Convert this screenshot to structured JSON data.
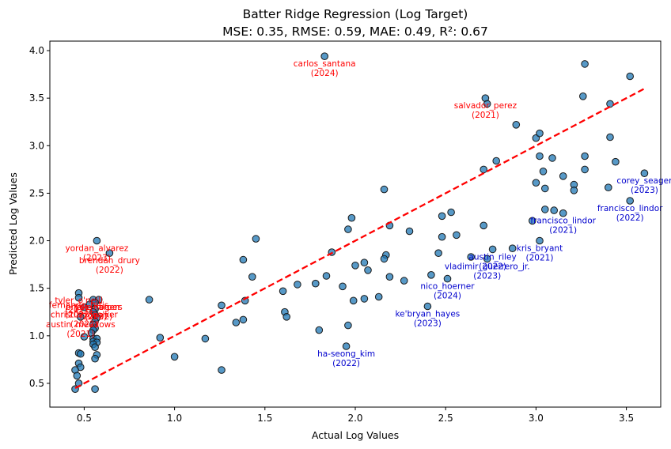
{
  "chart_data": {
    "type": "scatter",
    "title_line1": "Batter Ridge Regression (Log Target)",
    "title_line2": "MSE: 0.35, RMSE: 0.59, MAE: 0.49, R²: 0.67",
    "xlabel": "Actual Log Values",
    "ylabel": "Predicted Log Values",
    "xlim": [
      0.31,
      3.69
    ],
    "ylim": [
      0.25,
      4.1
    ],
    "xticks": [
      {
        "value": 0.5,
        "label": "0.5"
      },
      {
        "value": 1.0,
        "label": "1.0"
      },
      {
        "value": 1.5,
        "label": "1.5"
      },
      {
        "value": 2.0,
        "label": "2.0"
      },
      {
        "value": 2.5,
        "label": "2.5"
      },
      {
        "value": 3.0,
        "label": "3.0"
      },
      {
        "value": 3.5,
        "label": "3.5"
      }
    ],
    "yticks": [
      {
        "value": 0.5,
        "label": "0.5"
      },
      {
        "value": 1.0,
        "label": "1.0"
      },
      {
        "value": 1.5,
        "label": "1.5"
      },
      {
        "value": 2.0,
        "label": "2.0"
      },
      {
        "value": 2.5,
        "label": "2.5"
      },
      {
        "value": 3.0,
        "label": "3.0"
      },
      {
        "value": 3.5,
        "label": "3.5"
      },
      {
        "value": 4.0,
        "label": "4.0"
      }
    ],
    "point_color": "#1f77b4",
    "reference_line": {
      "from": [
        0.45,
        0.45
      ],
      "to": [
        3.6,
        3.6
      ],
      "color": "#ff0000",
      "style": "dashed"
    },
    "points": [
      [
        1.83,
        3.94
      ],
      [
        3.27,
        3.86
      ],
      [
        3.52,
        3.73
      ],
      [
        2.72,
        3.5
      ],
      [
        3.26,
        3.52
      ],
      [
        2.73,
        3.44
      ],
      [
        3.41,
        3.44
      ],
      [
        2.89,
        3.22
      ],
      [
        3.41,
        3.09
      ],
      [
        3.0,
        3.08
      ],
      [
        3.02,
        3.13
      ],
      [
        2.78,
        2.84
      ],
      [
        3.02,
        2.89
      ],
      [
        3.09,
        2.87
      ],
      [
        3.27,
        2.89
      ],
      [
        3.44,
        2.83
      ],
      [
        2.71,
        2.75
      ],
      [
        3.04,
        2.73
      ],
      [
        3.27,
        2.75
      ],
      [
        3.6,
        2.71
      ],
      [
        3.15,
        2.68
      ],
      [
        3.0,
        2.61
      ],
      [
        3.05,
        2.55
      ],
      [
        3.21,
        2.59
      ],
      [
        3.21,
        2.53
      ],
      [
        3.4,
        2.56
      ],
      [
        2.16,
        2.54
      ],
      [
        3.52,
        2.42
      ],
      [
        3.05,
        2.33
      ],
      [
        3.1,
        2.32
      ],
      [
        3.15,
        2.29
      ],
      [
        2.98,
        2.21
      ],
      [
        2.53,
        2.3
      ],
      [
        2.48,
        2.26
      ],
      [
        1.98,
        2.24
      ],
      [
        2.71,
        2.16
      ],
      [
        2.19,
        2.16
      ],
      [
        1.96,
        2.12
      ],
      [
        2.3,
        2.1
      ],
      [
        2.56,
        2.06
      ],
      [
        2.48,
        2.04
      ],
      [
        1.45,
        2.02
      ],
      [
        0.57,
        2.0
      ],
      [
        3.02,
        2.0
      ],
      [
        2.87,
        1.92
      ],
      [
        2.76,
        1.91
      ],
      [
        1.87,
        1.88
      ],
      [
        0.64,
        1.87
      ],
      [
        2.46,
        1.87
      ],
      [
        2.17,
        1.85
      ],
      [
        2.64,
        1.83
      ],
      [
        2.73,
        1.81
      ],
      [
        1.38,
        1.8
      ],
      [
        2.16,
        1.81
      ],
      [
        2.05,
        1.77
      ],
      [
        2.0,
        1.74
      ],
      [
        2.07,
        1.69
      ],
      [
        2.42,
        1.64
      ],
      [
        1.43,
        1.62
      ],
      [
        2.19,
        1.62
      ],
      [
        1.84,
        1.63
      ],
      [
        2.27,
        1.58
      ],
      [
        2.51,
        1.6
      ],
      [
        1.68,
        1.54
      ],
      [
        1.78,
        1.55
      ],
      [
        1.93,
        1.52
      ],
      [
        0.47,
        1.45
      ],
      [
        1.6,
        1.47
      ],
      [
        0.47,
        1.4
      ],
      [
        0.55,
        1.38
      ],
      [
        0.58,
        1.38
      ],
      [
        0.86,
        1.38
      ],
      [
        1.39,
        1.37
      ],
      [
        1.99,
        1.37
      ],
      [
        2.05,
        1.39
      ],
      [
        2.13,
        1.41
      ],
      [
        0.56,
        1.35
      ],
      [
        0.53,
        1.33
      ],
      [
        1.26,
        1.32
      ],
      [
        0.5,
        1.3
      ],
      [
        0.56,
        1.28
      ],
      [
        0.55,
        1.25
      ],
      [
        0.56,
        1.22
      ],
      [
        1.61,
        1.25
      ],
      [
        2.4,
        1.31
      ],
      [
        0.48,
        1.2
      ],
      [
        0.57,
        1.19
      ],
      [
        1.62,
        1.2
      ],
      [
        1.38,
        1.17
      ],
      [
        0.56,
        1.15
      ],
      [
        1.34,
        1.14
      ],
      [
        0.55,
        1.12
      ],
      [
        1.96,
        1.11
      ],
      [
        0.56,
        1.08
      ],
      [
        0.55,
        1.06
      ],
      [
        1.8,
        1.06
      ],
      [
        0.54,
        1.03
      ],
      [
        0.5,
        0.99
      ],
      [
        0.55,
        0.97
      ],
      [
        0.57,
        0.97
      ],
      [
        0.92,
        0.98
      ],
      [
        1.17,
        0.97
      ],
      [
        0.55,
        0.94
      ],
      [
        0.57,
        0.93
      ],
      [
        0.55,
        0.91
      ],
      [
        0.56,
        0.88
      ],
      [
        1.95,
        0.89
      ],
      [
        0.47,
        0.82
      ],
      [
        0.48,
        0.81
      ],
      [
        0.57,
        0.8
      ],
      [
        1.0,
        0.78
      ],
      [
        0.56,
        0.76
      ],
      [
        0.47,
        0.71
      ],
      [
        0.48,
        0.67
      ],
      [
        0.45,
        0.64
      ],
      [
        1.26,
        0.64
      ],
      [
        0.46,
        0.58
      ],
      [
        0.47,
        0.5
      ],
      [
        0.45,
        0.44
      ],
      [
        0.56,
        0.44
      ]
    ],
    "annotations": [
      {
        "lines": [
          "carlos_santana",
          "(2024)"
        ],
        "x": 1.83,
        "y": 3.94,
        "color": "#ff0000"
      },
      {
        "lines": [
          "salvador_perez",
          "(2021)"
        ],
        "x": 2.72,
        "y": 3.5,
        "color": "#ff0000"
      },
      {
        "lines": [
          "yordan_alvarez",
          "(2023)"
        ],
        "x": 0.57,
        "y": 2.0,
        "color": "#ff0000"
      },
      {
        "lines": [
          "brendan_drury",
          "(2022)"
        ],
        "x": 0.64,
        "y": 1.87,
        "color": "#ff0000"
      },
      {
        "lines": [
          "tyler_o'neill",
          "(2021)"
        ],
        "x": 0.47,
        "y": 1.45,
        "color": "#ff0000"
      },
      {
        "lines": [
          "fernando_tatis",
          "(2023)"
        ],
        "x": 0.47,
        "y": 1.4,
        "color": "#ff0000"
      },
      {
        "lines": [
          "bryce_harper",
          "(2023)"
        ],
        "x": 0.55,
        "y": 1.38,
        "color": "#ff0000"
      },
      {
        "lines": [
          "jake_rogers",
          "(2022)"
        ],
        "x": 0.58,
        "y": 1.38,
        "color": "#ff0000"
      },
      {
        "lines": [
          "christian_walker",
          "(2022)"
        ],
        "x": 0.5,
        "y": 1.3,
        "color": "#ff0000"
      },
      {
        "lines": [
          "austin_meadows",
          "(2021)"
        ],
        "x": 0.48,
        "y": 1.2,
        "color": "#ff0000"
      },
      {
        "lines": [
          "corey_seager",
          "(2023)"
        ],
        "x": 3.6,
        "y": 2.71,
        "color": "#0000cd"
      },
      {
        "lines": [
          "francisco_lindor",
          "(2022)"
        ],
        "x": 3.52,
        "y": 2.42,
        "color": "#0000cd"
      },
      {
        "lines": [
          "francisco_lindor",
          "(2021)"
        ],
        "x": 3.15,
        "y": 2.29,
        "color": "#0000cd"
      },
      {
        "lines": [
          "kris_bryant",
          "(2021)"
        ],
        "x": 3.02,
        "y": 2.0,
        "color": "#0000cd"
      },
      {
        "lines": [
          "austin_riley",
          "(2022)"
        ],
        "x": 2.76,
        "y": 1.91,
        "color": "#0000cd"
      },
      {
        "lines": [
          "vladimir_guerrero_jr.",
          "(2023)"
        ],
        "x": 2.73,
        "y": 1.81,
        "color": "#0000cd"
      },
      {
        "lines": [
          "nico_hoerner",
          "(2024)"
        ],
        "x": 2.51,
        "y": 1.6,
        "color": "#0000cd"
      },
      {
        "lines": [
          "ke'bryan_hayes",
          "(2023)"
        ],
        "x": 2.4,
        "y": 1.31,
        "color": "#0000cd"
      },
      {
        "lines": [
          "ha-seong_kim",
          "(2022)"
        ],
        "x": 1.95,
        "y": 0.89,
        "color": "#0000cd"
      }
    ]
  }
}
